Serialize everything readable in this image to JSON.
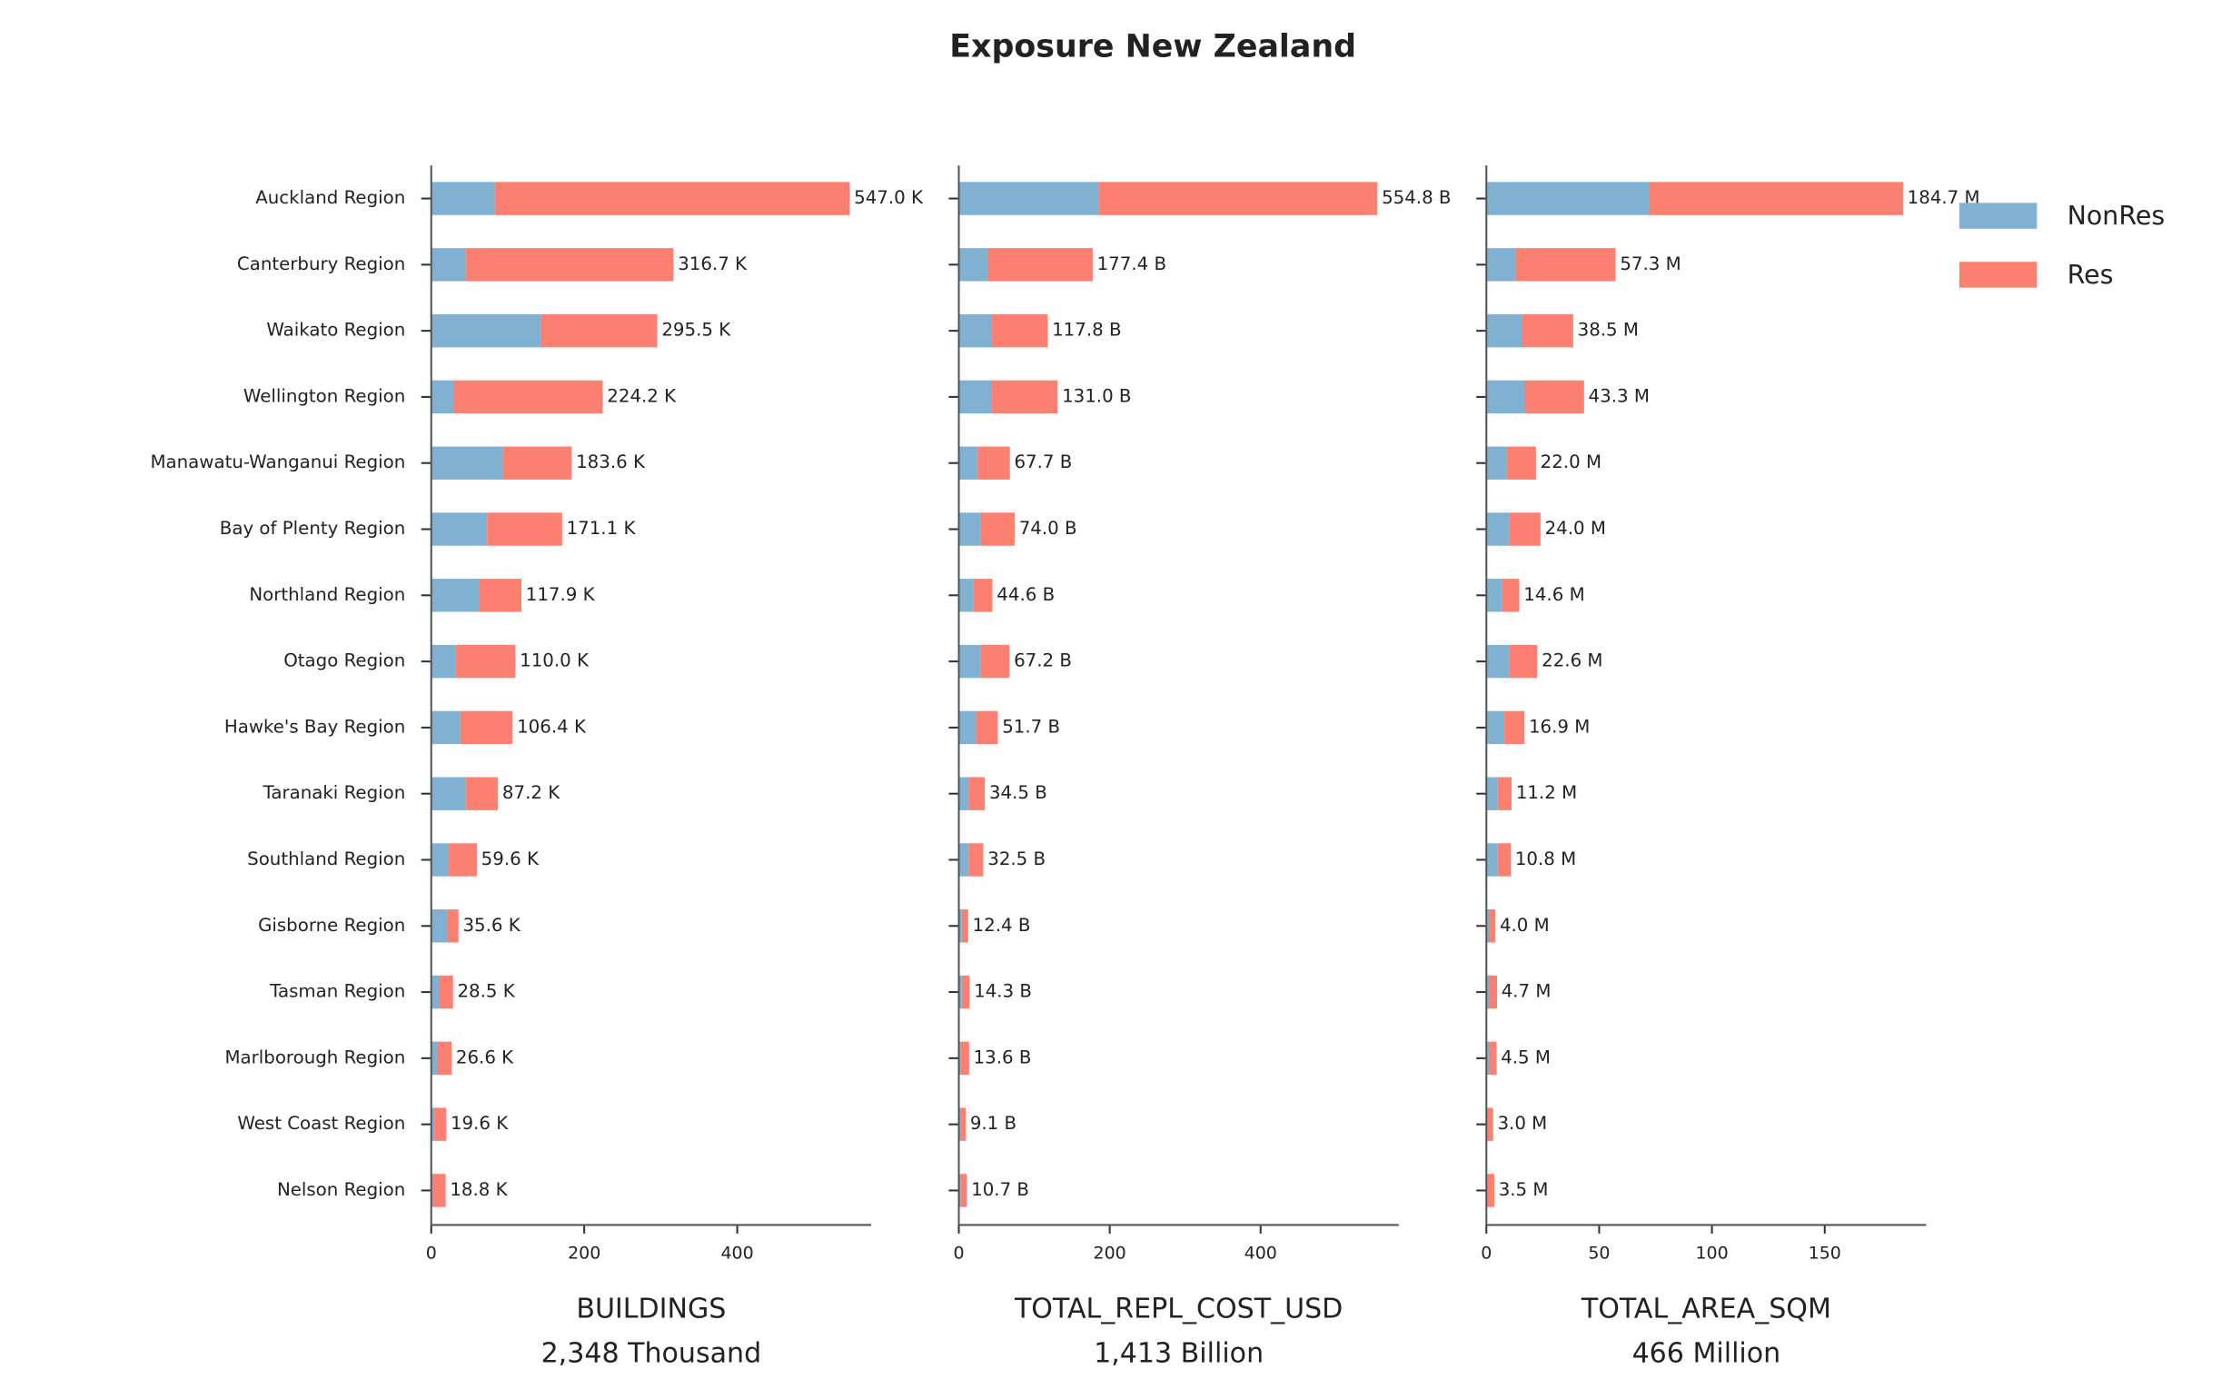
{
  "title": "Exposure New Zealand",
  "chart_data": [
    {
      "type": "barh-stacked",
      "categories": [
        "Auckland Region",
        "Canterbury Region",
        "Waikato Region",
        "Wellington Region",
        "Manawatu-Wanganui Region",
        "Bay of Plenty Region",
        "Northland Region",
        "Otago Region",
        "Hawke's Bay Region",
        "Taranaki Region",
        "Southland Region",
        "Gisborne Region",
        "Tasman Region",
        "Marlborough Region",
        "West Coast Region",
        "Nelson Region"
      ],
      "series": [
        {
          "name": "NonRes",
          "color": "#80b1d3",
          "values": [
            83,
            45,
            143,
            30,
            94,
            73,
            62,
            32,
            38,
            45,
            23,
            21,
            11,
            8,
            4,
            2
          ]
        },
        {
          "name": "Res",
          "color": "#fb8072",
          "values": [
            464.0,
            271.7,
            152.5,
            194.2,
            89.6,
            98.1,
            55.9,
            78.0,
            68.4,
            42.2,
            36.6,
            14.6,
            17.5,
            18.6,
            15.6,
            16.8
          ]
        }
      ],
      "totals": {
        "values": [
          547.0,
          316.7,
          295.5,
          224.2,
          183.6,
          171.1,
          117.9,
          110.0,
          106.4,
          87.2,
          59.6,
          35.6,
          28.5,
          26.6,
          19.6,
          18.8
        ],
        "value_labels": [
          "547.0 K",
          "316.7 K",
          "295.5 K",
          "224.2 K",
          "183.6 K",
          "171.1 K",
          "117.9 K",
          "110.0 K",
          "106.4 K",
          "87.2 K",
          "59.6 K",
          "35.6 K",
          "28.5 K",
          "26.6 K",
          "19.6 K",
          "18.8 K"
        ]
      },
      "xlim": [
        0,
        575
      ],
      "xticks": [
        0,
        200,
        400
      ],
      "xlabel": "BUILDINGS",
      "xlabel_sub": "2,348 Thousand"
    },
    {
      "type": "barh-stacked",
      "series": [
        {
          "color": "#80b1d3",
          "values": [
            185,
            38,
            44,
            44,
            25,
            29,
            19,
            29,
            23,
            13,
            13,
            4,
            4,
            2,
            2,
            2
          ]
        },
        {
          "color": "#fb8072",
          "values": [
            369.8,
            139.4,
            73.8,
            87.0,
            42.7,
            45.0,
            25.6,
            38.2,
            28.7,
            21.5,
            19.5,
            8.4,
            10.3,
            11.6,
            7.1,
            8.7
          ]
        }
      ],
      "totals": {
        "values": [
          554.8,
          177.4,
          117.8,
          131.0,
          67.7,
          74.0,
          44.6,
          67.2,
          51.7,
          34.5,
          32.5,
          12.4,
          14.3,
          13.6,
          9.1,
          10.7
        ],
        "value_labels": [
          "554.8 B",
          "177.4 B",
          "117.8 B",
          "131.0 B",
          "67.7 B",
          "74.0 B",
          "44.6 B",
          "67.2 B",
          "51.7 B",
          "34.5 B",
          "32.5 B",
          "12.4 B",
          "14.3 B",
          "13.6 B",
          "9.1 B",
          "10.7 B"
        ]
      },
      "xlim": [
        0,
        583
      ],
      "xticks": [
        0,
        200,
        400
      ],
      "xlabel": "TOTAL_REPL_COST_USD",
      "xlabel_sub": "1,413 Billion"
    },
    {
      "type": "barh-stacked",
      "series": [
        {
          "color": "#80b1d3",
          "values": [
            72,
            13,
            16,
            17,
            9,
            10,
            7,
            10,
            8,
            5,
            5,
            1.3,
            1.3,
            1.3,
            0.7,
            0.7
          ]
        },
        {
          "color": "#fb8072",
          "values": [
            112.7,
            44.3,
            22.5,
            26.3,
            13.0,
            14.0,
            7.6,
            12.6,
            8.9,
            6.2,
            5.8,
            2.7,
            3.4,
            3.2,
            2.3,
            2.8
          ]
        }
      ],
      "totals": {
        "values": [
          184.7,
          57.3,
          38.5,
          43.3,
          22.0,
          24.0,
          14.6,
          22.6,
          16.9,
          11.2,
          10.8,
          4.0,
          4.7,
          4.5,
          3.0,
          3.5
        ],
        "value_labels": [
          "184.7 M",
          "57.3 M",
          "38.5 M",
          "43.3 M",
          "22.0 M",
          "24.0 M",
          "14.6 M",
          "22.6 M",
          "16.9 M",
          "11.2 M",
          "10.8 M",
          "4.0 M",
          "4.7 M",
          "4.5 M",
          "3.0 M",
          "3.5 M"
        ]
      },
      "xlim": [
        0,
        195
      ],
      "xticks": [
        0,
        50,
        100,
        150
      ],
      "xlabel": "TOTAL_AREA_SQM",
      "xlabel_sub": "466 Million"
    }
  ]
}
